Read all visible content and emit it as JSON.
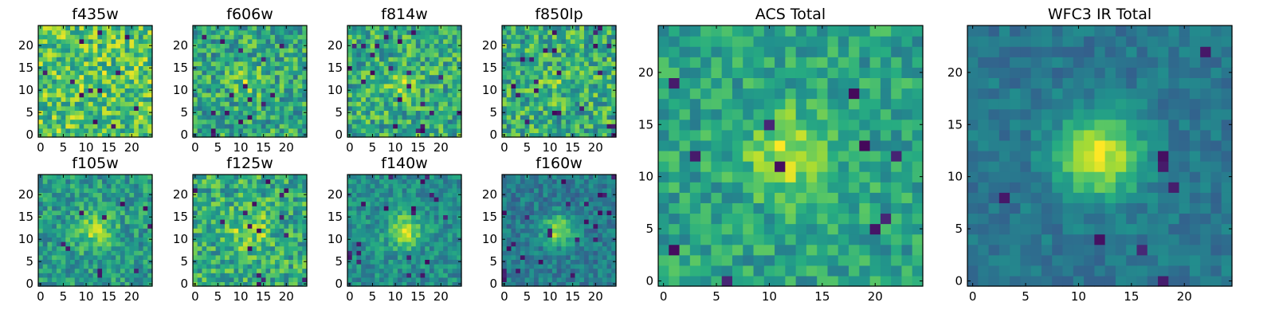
{
  "figure": {
    "description": "Multi-band cutout stamps, 25x25 pixel images with viridis colormap"
  },
  "chart_data": [
    {
      "type": "heatmap",
      "title": "f435w",
      "grid": [
        25,
        25
      ],
      "xlim": [
        -0.5,
        24.5
      ],
      "ylim": [
        -0.5,
        24.5
      ],
      "xticks": [
        "0",
        "5",
        "10",
        "15",
        "20"
      ],
      "yticks": [
        "0",
        "5",
        "10",
        "15",
        "20"
      ],
      "colormap": "viridis",
      "seed": 11,
      "signal": 0.05,
      "sigma": 2.5,
      "noise": 0.85,
      "base": 0.72,
      "dark": 0.01
    },
    {
      "type": "heatmap",
      "title": "f606w",
      "grid": [
        25,
        25
      ],
      "xlim": [
        -0.5,
        24.5
      ],
      "ylim": [
        -0.5,
        24.5
      ],
      "xticks": [
        "0",
        "5",
        "10",
        "15",
        "20"
      ],
      "yticks": [
        "0",
        "5",
        "10",
        "15",
        "20"
      ],
      "colormap": "viridis",
      "seed": 23,
      "signal": 0.18,
      "sigma": 2.5,
      "noise": 0.8,
      "base": 0.6,
      "dark": 0.02
    },
    {
      "type": "heatmap",
      "title": "f814w",
      "grid": [
        25,
        25
      ],
      "xlim": [
        -0.5,
        24.5
      ],
      "ylim": [
        -0.5,
        24.5
      ],
      "xticks": [
        "0",
        "5",
        "10",
        "15",
        "20"
      ],
      "yticks": [
        "0",
        "5",
        "10",
        "15",
        "20"
      ],
      "colormap": "viridis",
      "seed": 37,
      "signal": 0.2,
      "sigma": 2.6,
      "noise": 0.8,
      "base": 0.62,
      "dark": 0.025
    },
    {
      "type": "heatmap",
      "title": "f850lp",
      "grid": [
        25,
        25
      ],
      "xlim": [
        -0.5,
        24.5
      ],
      "ylim": [
        -0.5,
        24.5
      ],
      "xticks": [
        "0",
        "5",
        "10",
        "15",
        "20"
      ],
      "yticks": [
        "0",
        "5",
        "10",
        "15",
        "20"
      ],
      "colormap": "viridis",
      "seed": 41,
      "signal": 0.12,
      "sigma": 2.5,
      "noise": 0.85,
      "base": 0.62,
      "dark": 0.03
    },
    {
      "type": "heatmap",
      "title": "f105w",
      "grid": [
        25,
        25
      ],
      "xlim": [
        -0.5,
        24.5
      ],
      "ylim": [
        -0.5,
        24.5
      ],
      "xticks": [
        "0",
        "5",
        "10",
        "15",
        "20"
      ],
      "yticks": [
        "0",
        "5",
        "10",
        "15",
        "20"
      ],
      "colormap": "viridis",
      "seed": 53,
      "signal": 0.28,
      "sigma": 3.0,
      "noise": 0.6,
      "base": 0.55,
      "dark": 0.02
    },
    {
      "type": "heatmap",
      "title": "f125w",
      "grid": [
        25,
        25
      ],
      "xlim": [
        -0.5,
        24.5
      ],
      "ylim": [
        -0.5,
        24.5
      ],
      "xticks": [
        "0",
        "5",
        "10",
        "15",
        "20"
      ],
      "yticks": [
        "0",
        "5",
        "10",
        "15",
        "20"
      ],
      "colormap": "viridis",
      "seed": 67,
      "signal": 0.22,
      "sigma": 3.2,
      "noise": 0.75,
      "base": 0.62,
      "dark": 0.02
    },
    {
      "type": "heatmap",
      "title": "f140w",
      "grid": [
        25,
        25
      ],
      "xlim": [
        -0.5,
        24.5
      ],
      "ylim": [
        -0.5,
        24.5
      ],
      "xticks": [
        "0",
        "5",
        "10",
        "15",
        "20"
      ],
      "yticks": [
        "0",
        "5",
        "10",
        "15",
        "20"
      ],
      "colormap": "viridis",
      "seed": 79,
      "signal": 0.4,
      "sigma": 2.6,
      "noise": 0.5,
      "base": 0.5,
      "dark": 0.03
    },
    {
      "type": "heatmap",
      "title": "f160w",
      "grid": [
        25,
        25
      ],
      "xlim": [
        -0.5,
        24.5
      ],
      "ylim": [
        -0.5,
        24.5
      ],
      "xticks": [
        "0",
        "5",
        "10",
        "15",
        "20"
      ],
      "yticks": [
        "0",
        "5",
        "10",
        "15",
        "20"
      ],
      "colormap": "viridis",
      "seed": 83,
      "signal": 0.45,
      "sigma": 2.4,
      "noise": 0.45,
      "base": 0.42,
      "dark": 0.035
    },
    {
      "type": "heatmap",
      "title": "ACS Total",
      "grid": [
        25,
        25
      ],
      "xlim": [
        -0.5,
        24.5
      ],
      "ylim": [
        -0.5,
        24.5
      ],
      "xticks": [
        "0",
        "5",
        "10",
        "15",
        "20"
      ],
      "yticks": [
        "0",
        "5",
        "10",
        "15",
        "20"
      ],
      "colormap": "viridis",
      "seed": 97,
      "signal": 0.32,
      "sigma": 3.0,
      "noise": 0.55,
      "base": 0.58,
      "dark": 0.02
    },
    {
      "type": "heatmap",
      "title": "WFC3 IR Total",
      "grid": [
        25,
        25
      ],
      "xlim": [
        -0.5,
        24.5
      ],
      "ylim": [
        -0.5,
        24.5
      ],
      "xticks": [
        "0",
        "5",
        "10",
        "15",
        "20"
      ],
      "yticks": [
        "0",
        "5",
        "10",
        "15",
        "20"
      ],
      "colormap": "viridis",
      "seed": 101,
      "signal": 0.55,
      "sigma": 2.8,
      "noise": 0.3,
      "base": 0.4,
      "dark": 0.015
    }
  ]
}
